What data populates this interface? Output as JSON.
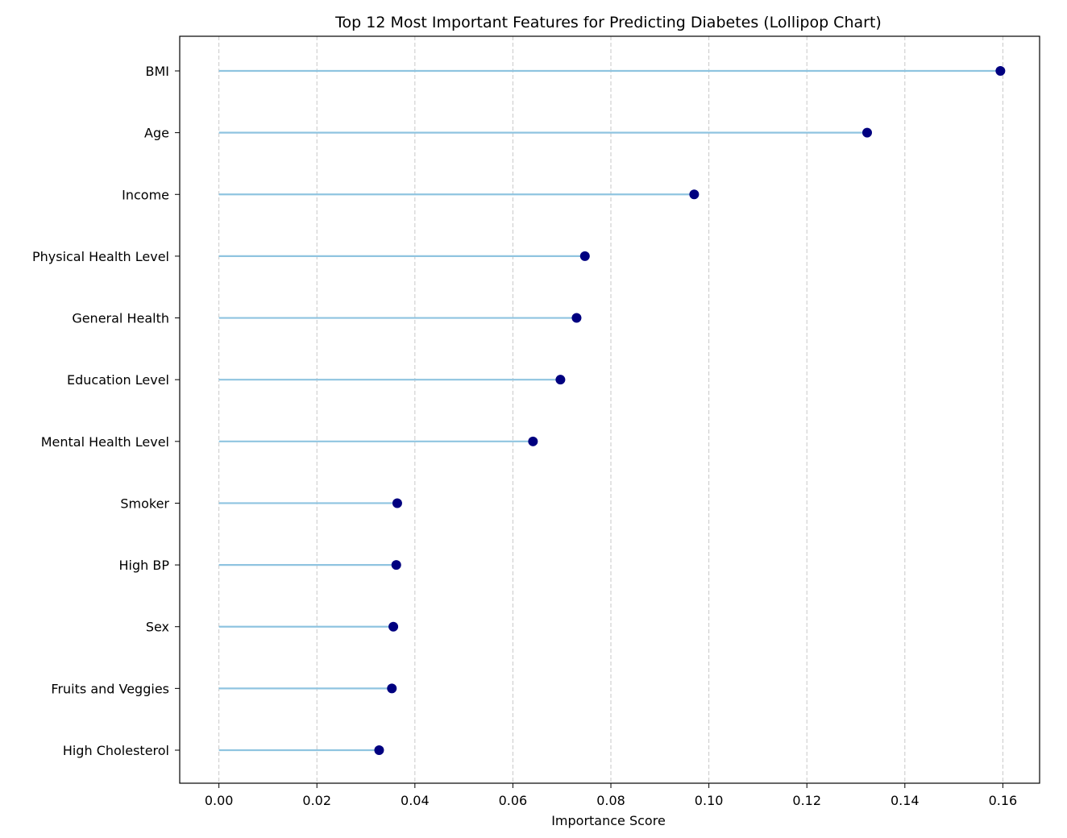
{
  "chart_data": {
    "type": "lollipop",
    "title": "Top 12 Most Important Features for Predicting Diabetes (Lollipop Chart)",
    "xlabel": "Importance Score",
    "ylabel": "",
    "xlim": [
      -0.008,
      0.1675
    ],
    "xticks": [
      0.0,
      0.02,
      0.04,
      0.06,
      0.08,
      0.1,
      0.12,
      0.14,
      0.16
    ],
    "xtick_labels": [
      "0.00",
      "0.02",
      "0.04",
      "0.06",
      "0.08",
      "0.10",
      "0.12",
      "0.14",
      "0.16"
    ],
    "grid": {
      "x": true,
      "y": false,
      "style": "dashed"
    },
    "colors": {
      "stem": "#8fc4e0",
      "marker": "#000080",
      "grid": "#c8c8c8",
      "axis": "#000000"
    },
    "categories": [
      "BMI",
      "Age",
      "Income",
      "Physical Health Level",
      "General Health",
      "Education Level",
      "Mental Health Level",
      "Smoker",
      "High BP",
      "Sex",
      "Fruits and Veggies",
      "High Cholesterol"
    ],
    "values": [
      0.1595,
      0.1323,
      0.097,
      0.0747,
      0.073,
      0.0697,
      0.0641,
      0.0364,
      0.0362,
      0.0356,
      0.0353,
      0.0327
    ]
  }
}
